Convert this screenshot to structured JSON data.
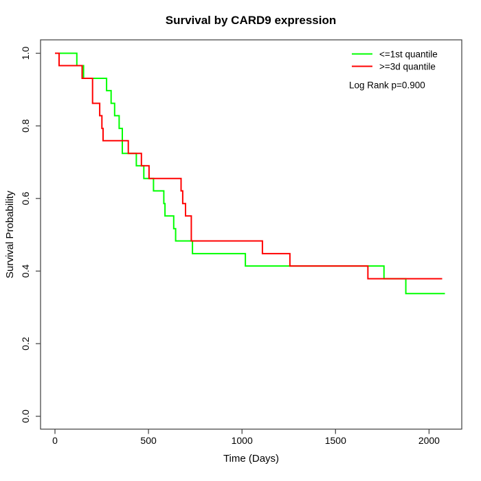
{
  "title": "Survival by CARD9 expression",
  "axes": {
    "x": {
      "label": "Time (Days)",
      "tick_labels": [
        "0",
        "500",
        "1000",
        "1500",
        "2000"
      ]
    },
    "y": {
      "label": "Survival Probability",
      "tick_labels": [
        "0.0",
        "0.2",
        "0.4",
        "0.6",
        "0.8",
        "1.0"
      ]
    }
  },
  "legend": {
    "items": [
      {
        "label": "<=1st quantile",
        "color": "#00ff00"
      },
      {
        "label": ">=3d quantile",
        "color": "#ff0000"
      }
    ],
    "annotation": "Log Rank p=0.900"
  },
  "chart_data": {
    "type": "line",
    "variant": "kaplan-meier-step",
    "title": "Survival by CARD9 expression",
    "xlabel": "Time (Days)",
    "ylabel": "Survival Probability",
    "xlim": [
      0,
      2175
    ],
    "ylim": [
      0,
      1.04
    ],
    "x_ticks": [
      0,
      500,
      1000,
      1500,
      2000
    ],
    "y_ticks": [
      0.0,
      0.2,
      0.4,
      0.6,
      0.8,
      1.0
    ],
    "grid": false,
    "legend_position": "top-right",
    "annotation": "Log Rank p=0.900",
    "series": [
      {
        "name": "<=1st quantile",
        "color": "#00ff00",
        "steps": [
          [
            0,
            1.0
          ],
          [
            117,
            0.966
          ],
          [
            153,
            0.931
          ],
          [
            276,
            0.897
          ],
          [
            300,
            0.862
          ],
          [
            319,
            0.828
          ],
          [
            343,
            0.793
          ],
          [
            360,
            0.724
          ],
          [
            435,
            0.69
          ],
          [
            475,
            0.655
          ],
          [
            527,
            0.621
          ],
          [
            582,
            0.586
          ],
          [
            588,
            0.552
          ],
          [
            635,
            0.517
          ],
          [
            645,
            0.483
          ],
          [
            735,
            0.448
          ],
          [
            1018,
            0.414
          ],
          [
            1759,
            0.379
          ],
          [
            1876,
            0.338
          ]
        ],
        "end_time": 2085
      },
      {
        "name": ">=3d quantile",
        "color": "#ff0000",
        "steps": [
          [
            0,
            1.0
          ],
          [
            22,
            0.966
          ],
          [
            145,
            0.931
          ],
          [
            201,
            0.862
          ],
          [
            239,
            0.828
          ],
          [
            251,
            0.793
          ],
          [
            257,
            0.759
          ],
          [
            392,
            0.724
          ],
          [
            462,
            0.69
          ],
          [
            503,
            0.655
          ],
          [
            674,
            0.621
          ],
          [
            683,
            0.586
          ],
          [
            698,
            0.552
          ],
          [
            729,
            0.483
          ],
          [
            1109,
            0.448
          ],
          [
            1256,
            0.414
          ],
          [
            1673,
            0.379
          ]
        ],
        "end_time": 2070
      }
    ]
  }
}
